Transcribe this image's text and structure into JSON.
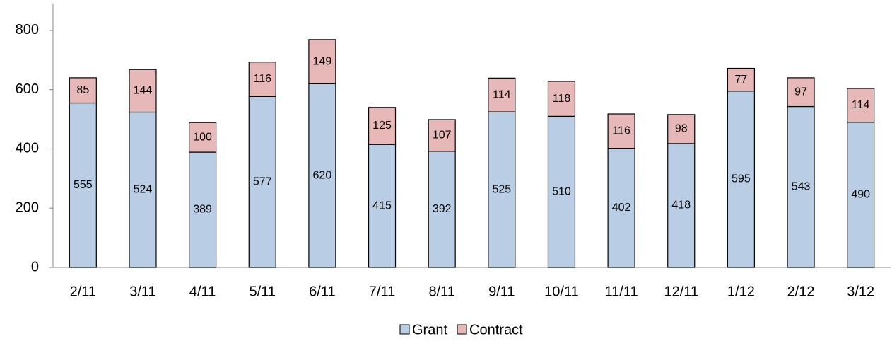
{
  "chart_data": {
    "type": "stacked_bar",
    "categories": [
      "2/11",
      "3/11",
      "4/11",
      "5/11",
      "6/11",
      "7/11",
      "8/11",
      "9/11",
      "10/11",
      "11/11",
      "12/11",
      "1/12",
      "2/12",
      "3/12"
    ],
    "series": [
      {
        "name": "Grant",
        "color": "#b9cde5",
        "values": [
          555,
          524,
          389,
          577,
          620,
          415,
          392,
          525,
          510,
          402,
          418,
          595,
          543,
          490
        ]
      },
      {
        "name": "Contract",
        "color": "#e6b9b8",
        "values": [
          85,
          144,
          100,
          116,
          149,
          125,
          107,
          114,
          118,
          116,
          98,
          77,
          97,
          114
        ]
      }
    ],
    "ylim": [
      0,
      900
    ],
    "yticks": [
      0,
      200,
      400,
      600,
      800
    ],
    "legend": "bottom"
  }
}
